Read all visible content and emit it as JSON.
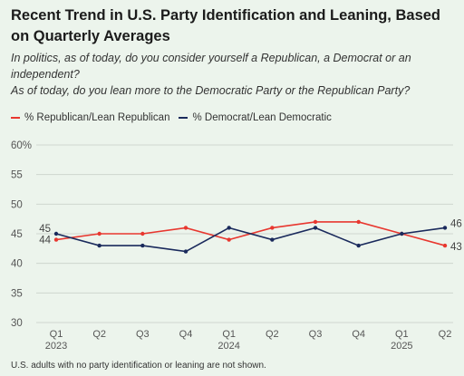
{
  "title": "Recent Trend in U.S. Party Identification and Leaning, Based on Quarterly Averages",
  "subtitle_lines": [
    "In politics, as of today, do you consider yourself a Republican, a Democrat or an independent?",
    "As of today, do you lean more to the Democratic Party or the Republican Party?"
  ],
  "footnote": "U.S. adults with no party identification or leaning are not shown.",
  "chart_data": {
    "type": "line",
    "categories": [
      "Q1",
      "Q2",
      "Q3",
      "Q4",
      "Q1",
      "Q2",
      "Q3",
      "Q4",
      "Q1",
      "Q2"
    ],
    "year_labels": [
      "2023",
      "",
      "",
      "",
      "2024",
      "",
      "",
      "",
      "2025",
      ""
    ],
    "ylim": [
      30,
      60
    ],
    "yticks": [
      30,
      35,
      40,
      45,
      50,
      55,
      60
    ],
    "ytick_labels": [
      "30",
      "35",
      "40",
      "45",
      "50",
      "55",
      "60%"
    ],
    "grid": true,
    "legend_position": "top-left",
    "series": [
      {
        "name": "% Republican/Lean Republican",
        "color": "#e8372f",
        "values": [
          44,
          45,
          45,
          46,
          44,
          46,
          47,
          47,
          45,
          43
        ],
        "start_label": "44",
        "end_label": "43"
      },
      {
        "name": "% Democrat/Lean Democratic",
        "color": "#1a2a5c",
        "values": [
          45,
          43,
          43,
          42,
          46,
          44,
          46,
          43,
          45,
          46
        ],
        "start_label": "45",
        "end_label": "46"
      }
    ]
  }
}
